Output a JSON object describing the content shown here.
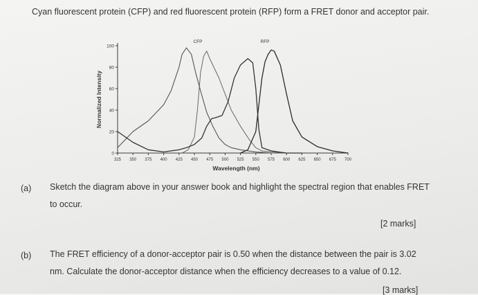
{
  "intro_text": "Cyan fluorescent protein (CFP) and red fluorescent protein (RFP) form a FRET donor and acceptor pair.",
  "chart_data": {
    "type": "line",
    "xlabel": "Wavelength (nm)",
    "ylabel": "Normalized Intensity",
    "xlim": [
      325,
      700
    ],
    "ylim": [
      0,
      100
    ],
    "xticks": [
      325,
      350,
      375,
      400,
      425,
      450,
      475,
      500,
      525,
      550,
      575,
      600,
      625,
      650,
      675,
      700
    ],
    "yticks": [
      0,
      20,
      40,
      60,
      80,
      100
    ],
    "annotations": [
      "CFP",
      "RFP"
    ],
    "series": [
      {
        "x": [
          325,
          350,
          375,
          400,
          412,
          425,
          430,
          437,
          445,
          452,
          460,
          470,
          480,
          490,
          500,
          510,
          525,
          550,
          575,
          600,
          625
        ],
        "y": [
          5,
          20,
          30,
          45,
          58,
          80,
          92,
          98,
          92,
          75,
          58,
          38,
          25,
          14,
          8,
          5,
          3,
          1,
          0,
          0,
          0
        ]
      },
      {
        "x": [
          430,
          440,
          450,
          455,
          460,
          465,
          470,
          475,
          480,
          490,
          500,
          510,
          525,
          540,
          550,
          560,
          575,
          600,
          625
        ],
        "y": [
          0,
          3,
          15,
          40,
          75,
          90,
          95,
          88,
          82,
          70,
          55,
          40,
          25,
          12,
          5,
          2,
          1,
          0,
          0
        ]
      },
      {
        "x": [
          325,
          350,
          375,
          400,
          425,
          437,
          450,
          462,
          470,
          478,
          485,
          495,
          505,
          515,
          525,
          537,
          545,
          550,
          555,
          560,
          575,
          600,
          625
        ],
        "y": [
          20,
          10,
          3,
          1,
          3,
          5,
          8,
          14,
          25,
          32,
          33,
          35,
          48,
          70,
          82,
          88,
          84,
          60,
          22,
          5,
          2,
          0,
          0
        ]
      },
      {
        "x": [
          525,
          537,
          550,
          555,
          560,
          565,
          570,
          575,
          580,
          590,
          600,
          610,
          625,
          650,
          675,
          700
        ],
        "y": [
          0,
          3,
          20,
          45,
          70,
          85,
          92,
          96,
          95,
          82,
          55,
          30,
          15,
          6,
          2,
          0
        ]
      }
    ]
  },
  "part_a": {
    "label": "(a)",
    "line1": "Sketch the diagram above in your answer book and highlight the spectral region that enables FRET",
    "line2": "to occur.",
    "marks": "[2 marks]"
  },
  "part_b": {
    "label": "(b)",
    "line1": "The FRET efficiency of a donor-acceptor pair is 0.50 when the distance between the pair is 3.02",
    "line2": "nm. Calculate the donor-acceptor distance when the efficiency decreases to a value of 0.12.",
    "marks": "[3 marks]"
  }
}
